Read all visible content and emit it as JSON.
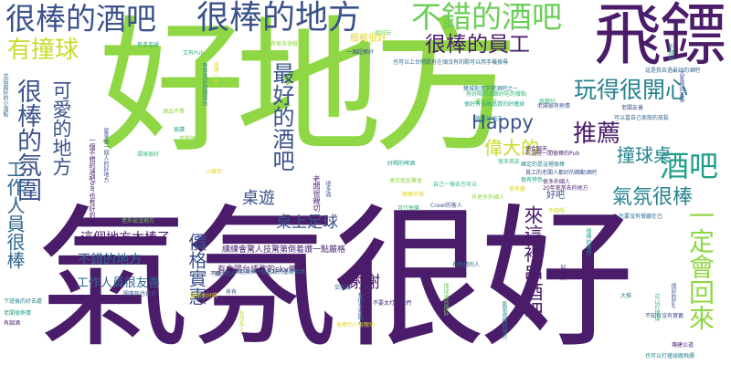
{
  "cloud": {
    "words": {
      "w01": "氣氛很好",
      "w02": "好地方",
      "w03": "飛鏢",
      "w04": "很棒的酒吧",
      "w05": "很棒的地方",
      "w06": "不錯的酒吧",
      "w07": "有撞球",
      "w08": "很棒的員工",
      "w09": "很棒的氛圍",
      "w10": "最好的酒吧",
      "w11": "玩得很開心",
      "w12": "可愛的地方",
      "w13": "推薦",
      "w14": "Happy",
      "w15": "偉大的",
      "w16": "撞球桌",
      "w17": "酒吧",
      "w18": "氣氛很棒",
      "w19": "桌遊",
      "w20": "桌上足球",
      "w21": "工作人員很棒",
      "w22": "這個地方太棒了",
      "w23": "不錯的地方",
      "w24": "價格實惠",
      "w25": "工作人員很友善",
      "w26": "謝謝",
      "w27": "來這裡串酒吧",
      "w28": "一定會回來",
      "w29": "有會國台語歌的sky樂隊",
      "w30": "練練會驚人技驚第倒着讚一點嚴格",
      "w31": "好吧",
      "w32": "服務很好",
      "w33": "有手足球",
      "w34": "又有Pub",
      "w35": "酒品不貴",
      "w36": "也可以上台唱歌有在頭沒有的歌可以用手機搜尋",
      "w37": "有很多遊戲",
      "w38": "一個超棒好",
      "w39": "很好玩",
      "w40": "雙城街老字號酒吧之一",
      "w41": "很好有多高品質的好撞球",
      "w42": "老闆很有熱情",
      "w43": "有好喝的酒跟好吃的餐點",
      "w44": "可以當自己家般的放鬆",
      "w45": "石洞裡一間很棒的Pub",
      "w46": "這是我去過最好的酒吧",
      "w47": "老闆很熱情",
      "w48": "確定的是這裡很棒",
      "w49": "很有趣",
      "w50": "很有特色",
      "w51": "員工的老闆人都好的篩動酒吧",
      "w52": "很多外國人",
      "w53": "20年來常去的地方",
      "w54": "只要沒有餐廳在已",
      "w55": "很多朋友",
      "w56": "Crawl的客人",
      "w57": "可行每樂",
      "w58": "有熱情的人",
      "w59": "大推",
      "w60": "不知有沒有實義",
      "w61": "傳建公道",
      "w62": "也可以打撞球跟飛鏢",
      "w63": "樂團不錯",
      "w64": "適合聊天",
      "w65": "撞球很好",
      "w66": "很親切",
      "w67": "放鬆好地方",
      "w68": "不錯喝",
      "w69": "老闆友善",
      "w70": "交朋友",
      "w71": "很好的人",
      "w72": "有有",
      "w73": "小確幸",
      "w74": "好喝的啤酒",
      "w75": "適合朋友聚會",
      "w76": "服務很好喝",
      "w77": "下班後的好去處",
      "w78": "老闆很熱情",
      "w79": "有調酒",
      "w80": "圖書館也很多",
      "w81": "環境很好",
      "w82": "不錯",
      "w83": "世足賽來一起看球的感覺真棒",
      "w84": "老外出沒地方",
      "w85": "很讚",
      "w86": "很棒的人很親切",
      "w87": "不要太打擾他們",
      "w88": "自己一個去也可以",
      "w89": "有更多外國人",
      "w90": "北投最好的小酒館",
      "w91": "是享受一個人的好地方",
      "w92": "一個不錯的酒吧bar也有好的人",
      "w93": "有非常好的撞球台",
      "w94": "值得一去",
      "w95": "老闆很親切",
      "w96": "很多酒",
      "w97": "有很多外國人",
      "w98": "撞球桌台很好",
      "w99": "氣氛很棒的地方",
      "w100": "很棒的地方",
      "w101": "可以打撞球",
      "w102": "很好的bar",
      "w103": "好多人",
      "w104": "有很多人",
      "w105": "大家都很友善",
      "w106": "不錯好"
    }
  }
}
